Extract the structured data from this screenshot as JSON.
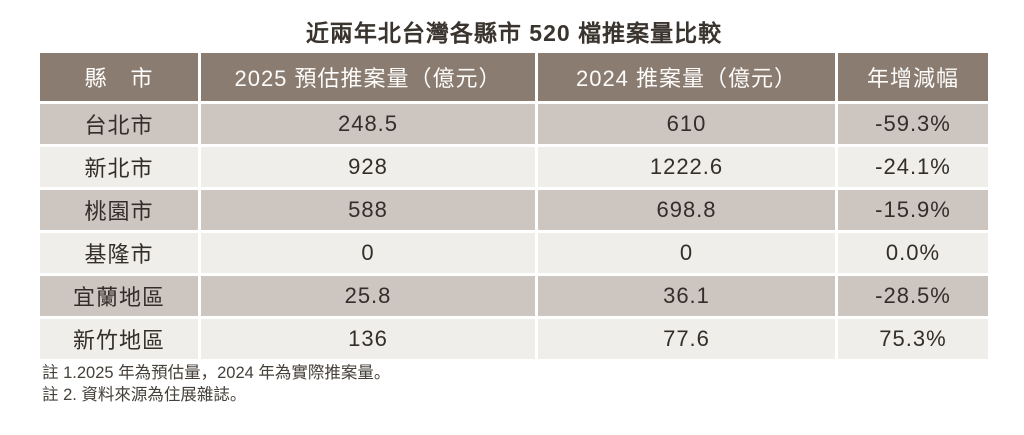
{
  "chart_data": {
    "type": "table",
    "title": "近兩年北台灣各縣市 520 檔推案量比較",
    "columns": [
      "縣　市",
      "2025 預估推案量（億元）",
      "2024 推案量（億元）",
      "年增減幅"
    ],
    "rows": [
      [
        "台北市",
        248.5,
        610,
        "-59.3%"
      ],
      [
        "新北市",
        928,
        1222.6,
        "-24.1%"
      ],
      [
        "桃園市",
        588,
        698.8,
        "-15.9%"
      ],
      [
        "基隆市",
        0,
        0,
        "0.0%"
      ],
      [
        "宜蘭地區",
        25.8,
        36.1,
        "-28.5%"
      ],
      [
        "新竹地區",
        136,
        77.6,
        "75.3%"
      ]
    ],
    "layout_hints": {
      "striped": "odd rows dark taupe, even rows off-white",
      "header_position": "top",
      "cell_alignment": "center"
    }
  },
  "notes": [
    "註 1.2025 年為預估量，2024 年為實際推案量。",
    "註 2. 資料來源為住展雜誌。"
  ],
  "colors": {
    "header_bg": "#8a7c71",
    "header_text": "#fdfcfa",
    "row_dark": "#cdc5bf",
    "row_light": "#f0eeea",
    "cell_text": "#332e29",
    "title_text": "#3a342e",
    "note_text": "#46403a"
  }
}
